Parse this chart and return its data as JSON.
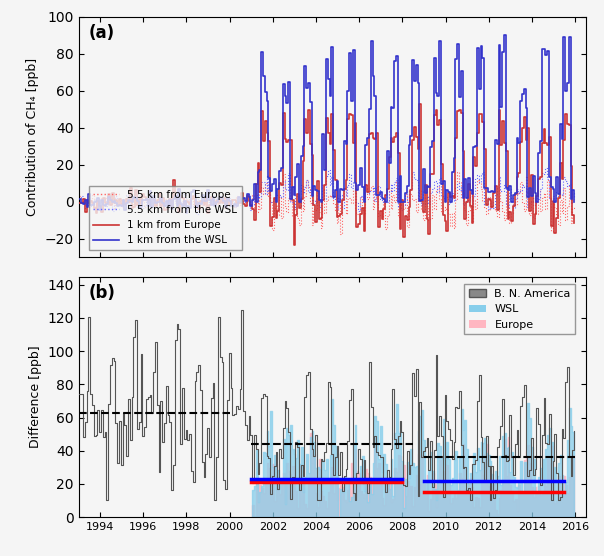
{
  "panel_a": {
    "title": "(a)",
    "ylabel": "Contribution of CH₄ [ppb]",
    "ylim": [
      -30,
      100
    ],
    "yticks": [
      -20,
      0,
      20,
      40,
      60,
      80,
      100
    ],
    "legend_entries": [
      {
        "label": "5.5 km from Europe",
        "color": "#ff4444",
        "linestyle": "dotted"
      },
      {
        "label": "5.5 km from the WSL",
        "color": "#4444ff",
        "linestyle": "dotted"
      },
      {
        "label": "1 km from Europe",
        "color": "#ff4444",
        "linestyle": "solid"
      },
      {
        "label": "1 km from the WSL",
        "color": "#4444ff",
        "linestyle": "solid"
      }
    ]
  },
  "panel_b": {
    "title": "(b)",
    "ylabel": "Difference [ppb]",
    "ylim": [
      0,
      145
    ],
    "yticks": [
      0,
      20,
      40,
      60,
      80,
      100,
      120,
      140
    ],
    "legend_entries": [
      {
        "label": "B. N. America",
        "color": "#666666"
      },
      {
        "label": "WSL",
        "color": "#87ceeb"
      },
      {
        "label": "Europe",
        "color": "#ffb6c1"
      }
    ],
    "dashed_segments": [
      {
        "x_start": 1993.0,
        "x_end": 2000.0,
        "y": 63,
        "color": "black"
      },
      {
        "x_start": 2001.0,
        "x_end": 2008.5,
        "y": 44,
        "color": "black"
      },
      {
        "x_start": 2009.0,
        "x_end": 2016.0,
        "y": 36,
        "color": "black"
      }
    ],
    "red_segments": [
      {
        "x_start": 2001.0,
        "x_end": 2008.0,
        "y": 21,
        "color": "red"
      },
      {
        "x_start": 2009.0,
        "x_end": 2015.5,
        "y": 15,
        "color": "red"
      }
    ],
    "blue_segments": [
      {
        "x_start": 2001.0,
        "x_end": 2008.0,
        "y": 23,
        "color": "blue"
      },
      {
        "x_start": 2009.0,
        "x_end": 2015.5,
        "y": 22,
        "color": "blue"
      }
    ]
  },
  "xlim": [
    1993.0,
    2016.5
  ],
  "xticks": [
    1994,
    1996,
    1998,
    2000,
    2002,
    2004,
    2006,
    2008,
    2010,
    2012,
    2014,
    2016
  ],
  "xticklabels": [
    "1994",
    "1996",
    "1998",
    "2000",
    "2002",
    "2004",
    "2006",
    "2008",
    "2010",
    "2012",
    "2014",
    "2016"
  ],
  "background_color": "#f5f5f5"
}
